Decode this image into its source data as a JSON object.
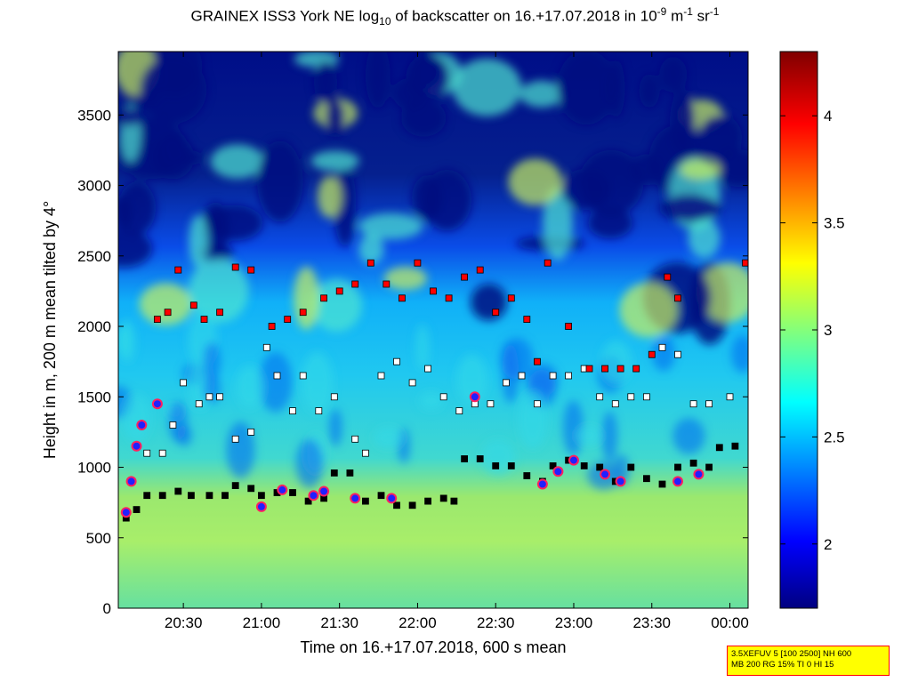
{
  "title": {
    "pre": "GRAINEX ISS3 York NE log",
    "sub": "10",
    "mid": " of backscatter on 16.+17.07.2018 in 10",
    "sup1": "-9",
    "mid2": " m",
    "sup2": "-1",
    "mid3": " sr",
    "sup3": "-1"
  },
  "info_box": {
    "line1": "3.5XEFUV 5 [100 2500] NH 600",
    "line2": "MB 200 RG 15% TI 0 HI 15"
  },
  "chart_data": {
    "type": "heatmap",
    "xlabel": "Time on 16.+17.07.2018, 600 s mean",
    "ylabel": "Height in m, 200 m mean tilted by 4°",
    "x_ticks": [
      "20:30",
      "21:00",
      "21:30",
      "22:00",
      "22:30",
      "23:00",
      "23:30",
      "00:00"
    ],
    "x_tick_minutes": [
      1230,
      1260,
      1290,
      1320,
      1350,
      1380,
      1410,
      1440
    ],
    "xlim_minutes": [
      1205,
      1447
    ],
    "y_ticks": [
      0,
      500,
      1000,
      1500,
      2000,
      2500,
      3000,
      3500
    ],
    "ylim": [
      0,
      3950
    ],
    "colorbar": {
      "ticks": [
        2,
        2.5,
        3,
        3.5,
        4
      ],
      "range": [
        1.7,
        4.3
      ],
      "colormap": [
        "#000080",
        "#0000ff",
        "#00ffff",
        "#ffff00",
        "#ff0000",
        "#800000"
      ]
    },
    "layer_markers": [
      {
        "name": "mixing-layer",
        "color": "#000000",
        "points": [
          [
            1208,
            640
          ],
          [
            1212,
            700
          ],
          [
            1216,
            800
          ],
          [
            1222,
            800
          ],
          [
            1228,
            830
          ],
          [
            1233,
            800
          ],
          [
            1240,
            800
          ],
          [
            1246,
            800
          ],
          [
            1250,
            870
          ],
          [
            1256,
            850
          ],
          [
            1260,
            800
          ],
          [
            1266,
            820
          ],
          [
            1272,
            820
          ],
          [
            1278,
            760
          ],
          [
            1284,
            780
          ],
          [
            1288,
            960
          ],
          [
            1294,
            960
          ],
          [
            1300,
            760
          ],
          [
            1306,
            800
          ],
          [
            1312,
            730
          ],
          [
            1318,
            730
          ],
          [
            1324,
            760
          ],
          [
            1330,
            780
          ],
          [
            1334,
            760
          ],
          [
            1338,
            1060
          ],
          [
            1344,
            1060
          ],
          [
            1350,
            1010
          ],
          [
            1356,
            1010
          ],
          [
            1362,
            940
          ],
          [
            1368,
            900
          ],
          [
            1372,
            1010
          ],
          [
            1378,
            1050
          ],
          [
            1384,
            1010
          ],
          [
            1390,
            1000
          ],
          [
            1396,
            900
          ],
          [
            1402,
            1000
          ],
          [
            1408,
            920
          ],
          [
            1414,
            880
          ],
          [
            1420,
            1000
          ],
          [
            1426,
            1030
          ],
          [
            1432,
            1000
          ],
          [
            1436,
            1140
          ],
          [
            1442,
            1150
          ]
        ]
      },
      {
        "name": "residual-layer",
        "color": "#ffffff",
        "points": [
          [
            1216,
            1100
          ],
          [
            1222,
            1100
          ],
          [
            1226,
            1300
          ],
          [
            1230,
            1600
          ],
          [
            1236,
            1450
          ],
          [
            1240,
            1500
          ],
          [
            1244,
            1500
          ],
          [
            1250,
            1200
          ],
          [
            1256,
            1250
          ],
          [
            1262,
            1850
          ],
          [
            1266,
            1650
          ],
          [
            1272,
            1400
          ],
          [
            1276,
            1650
          ],
          [
            1282,
            1400
          ],
          [
            1288,
            1500
          ],
          [
            1296,
            1200
          ],
          [
            1300,
            1100
          ],
          [
            1306,
            1650
          ],
          [
            1312,
            1750
          ],
          [
            1318,
            1600
          ],
          [
            1324,
            1700
          ],
          [
            1330,
            1500
          ],
          [
            1336,
            1400
          ],
          [
            1342,
            1450
          ],
          [
            1348,
            1450
          ],
          [
            1354,
            1600
          ],
          [
            1360,
            1650
          ],
          [
            1366,
            1450
          ],
          [
            1372,
            1650
          ],
          [
            1378,
            1650
          ],
          [
            1384,
            1700
          ],
          [
            1390,
            1500
          ],
          [
            1396,
            1450
          ],
          [
            1402,
            1500
          ],
          [
            1408,
            1500
          ],
          [
            1414,
            1850
          ],
          [
            1420,
            1800
          ],
          [
            1426,
            1450
          ],
          [
            1432,
            1450
          ],
          [
            1440,
            1500
          ]
        ]
      },
      {
        "name": "upper-layer",
        "color": "#ff0000",
        "points": [
          [
            1220,
            2050
          ],
          [
            1224,
            2100
          ],
          [
            1228,
            2400
          ],
          [
            1234,
            2150
          ],
          [
            1238,
            2050
          ],
          [
            1244,
            2100
          ],
          [
            1250,
            2420
          ],
          [
            1256,
            2400
          ],
          [
            1264,
            2000
          ],
          [
            1270,
            2050
          ],
          [
            1276,
            2100
          ],
          [
            1284,
            2200
          ],
          [
            1290,
            2250
          ],
          [
            1296,
            2300
          ],
          [
            1302,
            2450
          ],
          [
            1308,
            2300
          ],
          [
            1314,
            2200
          ],
          [
            1320,
            2450
          ],
          [
            1326,
            2250
          ],
          [
            1332,
            2200
          ],
          [
            1338,
            2350
          ],
          [
            1344,
            2400
          ],
          [
            1350,
            2100
          ],
          [
            1356,
            2200
          ],
          [
            1362,
            2050
          ],
          [
            1366,
            1750
          ],
          [
            1370,
            2450
          ],
          [
            1378,
            2000
          ],
          [
            1386,
            1700
          ],
          [
            1392,
            1700
          ],
          [
            1398,
            1700
          ],
          [
            1404,
            1700
          ],
          [
            1410,
            1800
          ],
          [
            1416,
            2350
          ],
          [
            1420,
            2200
          ],
          [
            1446,
            2450
          ]
        ]
      },
      {
        "name": "cloud-base",
        "color": "#ff0000",
        "points": [
          [
            1208,
            680
          ],
          [
            1210,
            900
          ],
          [
            1212,
            1150
          ],
          [
            1214,
            1300
          ],
          [
            1220,
            1450
          ],
          [
            1260,
            720
          ],
          [
            1268,
            840
          ],
          [
            1280,
            800
          ],
          [
            1284,
            830
          ],
          [
            1296,
            780
          ],
          [
            1310,
            780
          ],
          [
            1342,
            1500
          ],
          [
            1368,
            880
          ],
          [
            1374,
            970
          ],
          [
            1380,
            1050
          ],
          [
            1392,
            950
          ],
          [
            1398,
            900
          ],
          [
            1420,
            900
          ],
          [
            1428,
            950
          ]
        ]
      }
    ]
  }
}
